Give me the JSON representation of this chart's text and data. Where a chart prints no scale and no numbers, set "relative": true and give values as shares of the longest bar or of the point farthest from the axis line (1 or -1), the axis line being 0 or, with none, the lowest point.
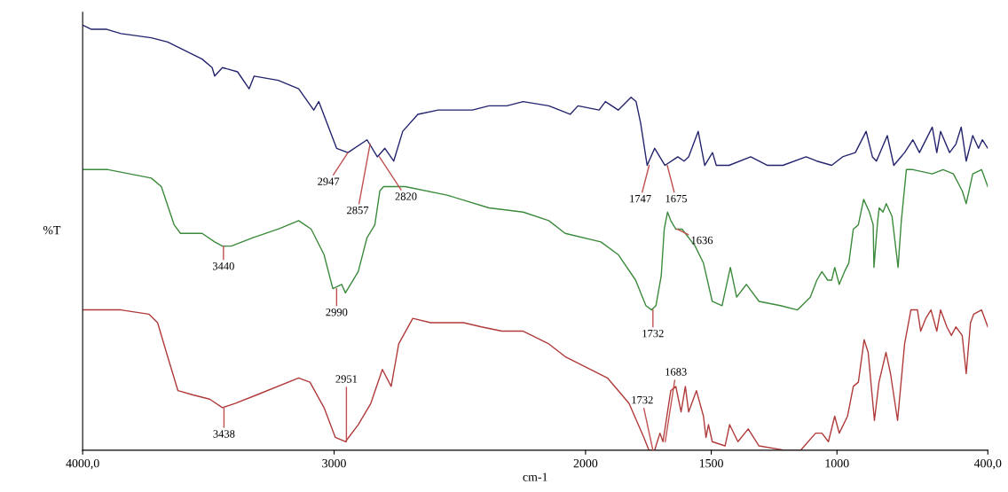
{
  "chart_data": {
    "type": "line",
    "relative": true,
    "xlabel": "cm-1",
    "ylabel": "%T",
    "xlim": [
      4000,
      400
    ],
    "xticks": [
      {
        "value": 4000,
        "label": "4000,0"
      },
      3000,
      2000,
      1500,
      1000,
      {
        "value": 400,
        "label": "400,0"
      }
    ],
    "tick_labels": "x",
    "grid": false,
    "marker": "none",
    "line_style": "solid",
    "series": [
      {
        "color": "#23236e",
        "x": [
          4000,
          3965,
          3904,
          3848,
          3727,
          3662,
          3525,
          3485,
          3475,
          3444,
          3384,
          3338,
          3318,
          3222,
          3141,
          3081,
          3061,
          2990,
          2945,
          2869,
          2828,
          2798,
          2763,
          2727,
          2667,
          2586,
          2450,
          2384,
          2313,
          2248,
          2146,
          2061,
          2030,
          1946,
          1921,
          1870,
          1819,
          1799,
          1781,
          1755,
          1725,
          1684,
          1633,
          1608,
          1590,
          1552,
          1526,
          1495,
          1480,
          1429,
          1343,
          1276,
          1215,
          1123,
          1080,
          1021,
          978,
          927,
          884,
          859,
          843,
          800,
          774,
          731,
          698,
          672,
          621,
          603,
          588,
          552,
          527,
          506,
          486,
          460,
          437,
          422,
          400
        ],
        "values": [
          1.0,
          0.99,
          0.99,
          0.98,
          0.97,
          0.96,
          0.92,
          0.9,
          0.88,
          0.9,
          0.89,
          0.85,
          0.88,
          0.87,
          0.85,
          0.8,
          0.82,
          0.71,
          0.7,
          0.73,
          0.69,
          0.71,
          0.68,
          0.75,
          0.79,
          0.8,
          0.8,
          0.81,
          0.81,
          0.82,
          0.81,
          0.79,
          0.81,
          0.8,
          0.82,
          0.8,
          0.83,
          0.82,
          0.77,
          0.67,
          0.71,
          0.67,
          0.69,
          0.68,
          0.69,
          0.75,
          0.67,
          0.7,
          0.67,
          0.67,
          0.69,
          0.67,
          0.67,
          0.69,
          0.68,
          0.67,
          0.69,
          0.7,
          0.75,
          0.69,
          0.68,
          0.74,
          0.67,
          0.7,
          0.73,
          0.7,
          0.76,
          0.7,
          0.75,
          0.7,
          0.72,
          0.76,
          0.68,
          0.74,
          0.71,
          0.73,
          0.71
        ]
      },
      {
        "color": "#3b8a3b",
        "x": [
          4000,
          3899,
          3727,
          3687,
          3636,
          3611,
          3525,
          3475,
          3444,
          3409,
          3323,
          3222,
          3141,
          3091,
          3040,
          3005,
          2970,
          2955,
          2904,
          2869,
          2838,
          2818,
          2803,
          2717,
          2551,
          2384,
          2248,
          2146,
          2081,
          1939,
          1870,
          1801,
          1760,
          1737,
          1720,
          1699,
          1687,
          1674,
          1661,
          1641,
          1616,
          1564,
          1531,
          1496,
          1457,
          1424,
          1399,
          1360,
          1310,
          1225,
          1157,
          1106,
          1080,
          1060,
          1037,
          1021,
          1009,
          991,
          970,
          953,
          935,
          915,
          894,
          871,
          856,
          853,
          838,
          832,
          817,
          804,
          781,
          757,
          744,
          724,
          698,
          621,
          578,
          537,
          502,
          486,
          460,
          425,
          400
        ],
        "values": [
          0.66,
          0.66,
          0.64,
          0.62,
          0.53,
          0.51,
          0.51,
          0.49,
          0.48,
          0.48,
          0.5,
          0.52,
          0.54,
          0.52,
          0.46,
          0.38,
          0.39,
          0.37,
          0.42,
          0.5,
          0.53,
          0.61,
          0.62,
          0.62,
          0.6,
          0.57,
          0.56,
          0.54,
          0.51,
          0.49,
          0.46,
          0.4,
          0.34,
          0.33,
          0.34,
          0.41,
          0.52,
          0.56,
          0.54,
          0.52,
          0.52,
          0.48,
          0.44,
          0.35,
          0.34,
          0.43,
          0.36,
          0.39,
          0.35,
          0.34,
          0.33,
          0.36,
          0.4,
          0.42,
          0.4,
          0.4,
          0.43,
          0.39,
          0.42,
          0.44,
          0.52,
          0.53,
          0.59,
          0.56,
          0.53,
          0.43,
          0.54,
          0.57,
          0.56,
          0.58,
          0.55,
          0.43,
          0.54,
          0.66,
          0.66,
          0.65,
          0.66,
          0.65,
          0.61,
          0.58,
          0.65,
          0.66,
          0.62
        ]
      },
      {
        "color": "#b03a3a",
        "x": [
          4000,
          3848,
          3737,
          3702,
          3662,
          3621,
          3561,
          3495,
          3444,
          3394,
          3308,
          3141,
          3096,
          3040,
          2995,
          2955,
          2904,
          2854,
          2808,
          2773,
          2743,
          2687,
          2616,
          2485,
          2414,
          2333,
          2248,
          2146,
          2081,
          1913,
          1827,
          1768,
          1748,
          1725,
          1704,
          1692,
          1661,
          1641,
          1620,
          1603,
          1590,
          1559,
          1531,
          1521,
          1511,
          1496,
          1445,
          1427,
          1394,
          1353,
          1310,
          1208,
          1144,
          1085,
          1060,
          1034,
          1009,
          991,
          958,
          935,
          915,
          892,
          876,
          851,
          833,
          805,
          787,
          759,
          731,
          706,
          680,
          667,
          647,
          626,
          603,
          588,
          563,
          545,
          527,
          502,
          486,
          469,
          456,
          425,
          400
        ],
        "values": [
          0.33,
          0.33,
          0.32,
          0.3,
          0.22,
          0.14,
          0.13,
          0.12,
          0.1,
          0.11,
          0.13,
          0.17,
          0.16,
          0.1,
          0.03,
          0.02,
          0.06,
          0.11,
          0.19,
          0.15,
          0.25,
          0.31,
          0.3,
          0.3,
          0.29,
          0.28,
          0.28,
          0.25,
          0.22,
          0.17,
          0.11,
          0.03,
          0.0,
          0.0,
          0.04,
          0.02,
          0.14,
          0.15,
          0.09,
          0.15,
          0.09,
          0.14,
          0.08,
          0.03,
          0.06,
          0.02,
          0.01,
          0.06,
          0.02,
          0.05,
          0.01,
          0.0,
          0.0,
          0.04,
          0.04,
          0.02,
          0.08,
          0.04,
          0.08,
          0.15,
          0.16,
          0.26,
          0.23,
          0.07,
          0.16,
          0.23,
          0.18,
          0.07,
          0.25,
          0.33,
          0.33,
          0.28,
          0.31,
          0.33,
          0.28,
          0.33,
          0.29,
          0.27,
          0.29,
          0.27,
          0.18,
          0.3,
          0.32,
          0.33,
          0.29
        ]
      }
    ],
    "annotations": [
      {
        "text": "2947",
        "x": 2945,
        "y": 0.7
      },
      {
        "text": "2857",
        "x": 2857,
        "y": 0.72
      },
      {
        "text": "2820",
        "x": 2820,
        "y": 0.69
      },
      {
        "text": "1747",
        "x": 1747,
        "y": 0.67
      },
      {
        "text": "1675",
        "x": 1675,
        "y": 0.67
      },
      {
        "text": "3440",
        "x": 3440,
        "y": 0.48
      },
      {
        "text": "2990",
        "x": 2990,
        "y": 0.38
      },
      {
        "text": "1732",
        "x": 1732,
        "y": 0.33
      },
      {
        "text": "1636",
        "x": 1636,
        "y": 0.52
      },
      {
        "text": "3438",
        "x": 3438,
        "y": 0.1
      },
      {
        "text": "2951",
        "x": 2951,
        "y": 0.02
      },
      {
        "text": "1732",
        "x": 1732,
        "y": 0.0
      },
      {
        "text": "1683",
        "x": 1683,
        "y": 0.02
      }
    ]
  }
}
